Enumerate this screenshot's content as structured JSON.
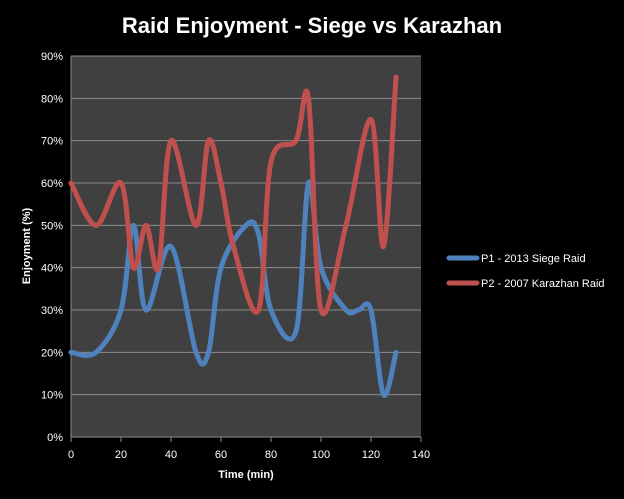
{
  "chart_data": {
    "type": "line",
    "title": "Raid Enjoyment - Siege vs Karazhan",
    "xlabel": "Time (min)",
    "ylabel": "Enjoyment (%)",
    "xlim": [
      0,
      140
    ],
    "ylim": [
      0,
      90
    ],
    "x_ticks": [
      "0",
      "20",
      "40",
      "60",
      "80",
      "100",
      "120",
      "140"
    ],
    "y_ticks": [
      "0%",
      "10%",
      "20%",
      "30%",
      "40%",
      "50%",
      "60%",
      "70%",
      "80%",
      "90%"
    ],
    "grid": "horizontal",
    "legend_position": "right",
    "series": [
      {
        "name": "P1 - 2013 Siege Raid",
        "color": "#4f81bd",
        "x": [
          0,
          10,
          20,
          25,
          30,
          40,
          50,
          55,
          60,
          70,
          75,
          80,
          90,
          95,
          100,
          110,
          115,
          120,
          125,
          130
        ],
        "y": [
          20,
          20,
          30,
          50,
          30,
          45,
          20,
          20,
          40,
          50,
          48,
          30,
          25,
          60,
          40,
          30,
          30,
          30,
          10,
          20
        ]
      },
      {
        "name": "P2 - 2007 Karazhan Raid",
        "color": "#c0504d",
        "x": [
          0,
          10,
          20,
          25,
          30,
          35,
          40,
          50,
          55,
          60,
          65,
          75,
          80,
          90,
          95,
          100,
          110,
          120,
          125,
          130
        ],
        "y": [
          60,
          50,
          60,
          40,
          50,
          40,
          70,
          50,
          70,
          60,
          45,
          30,
          65,
          70,
          80,
          30,
          50,
          75,
          45,
          85
        ]
      }
    ]
  }
}
